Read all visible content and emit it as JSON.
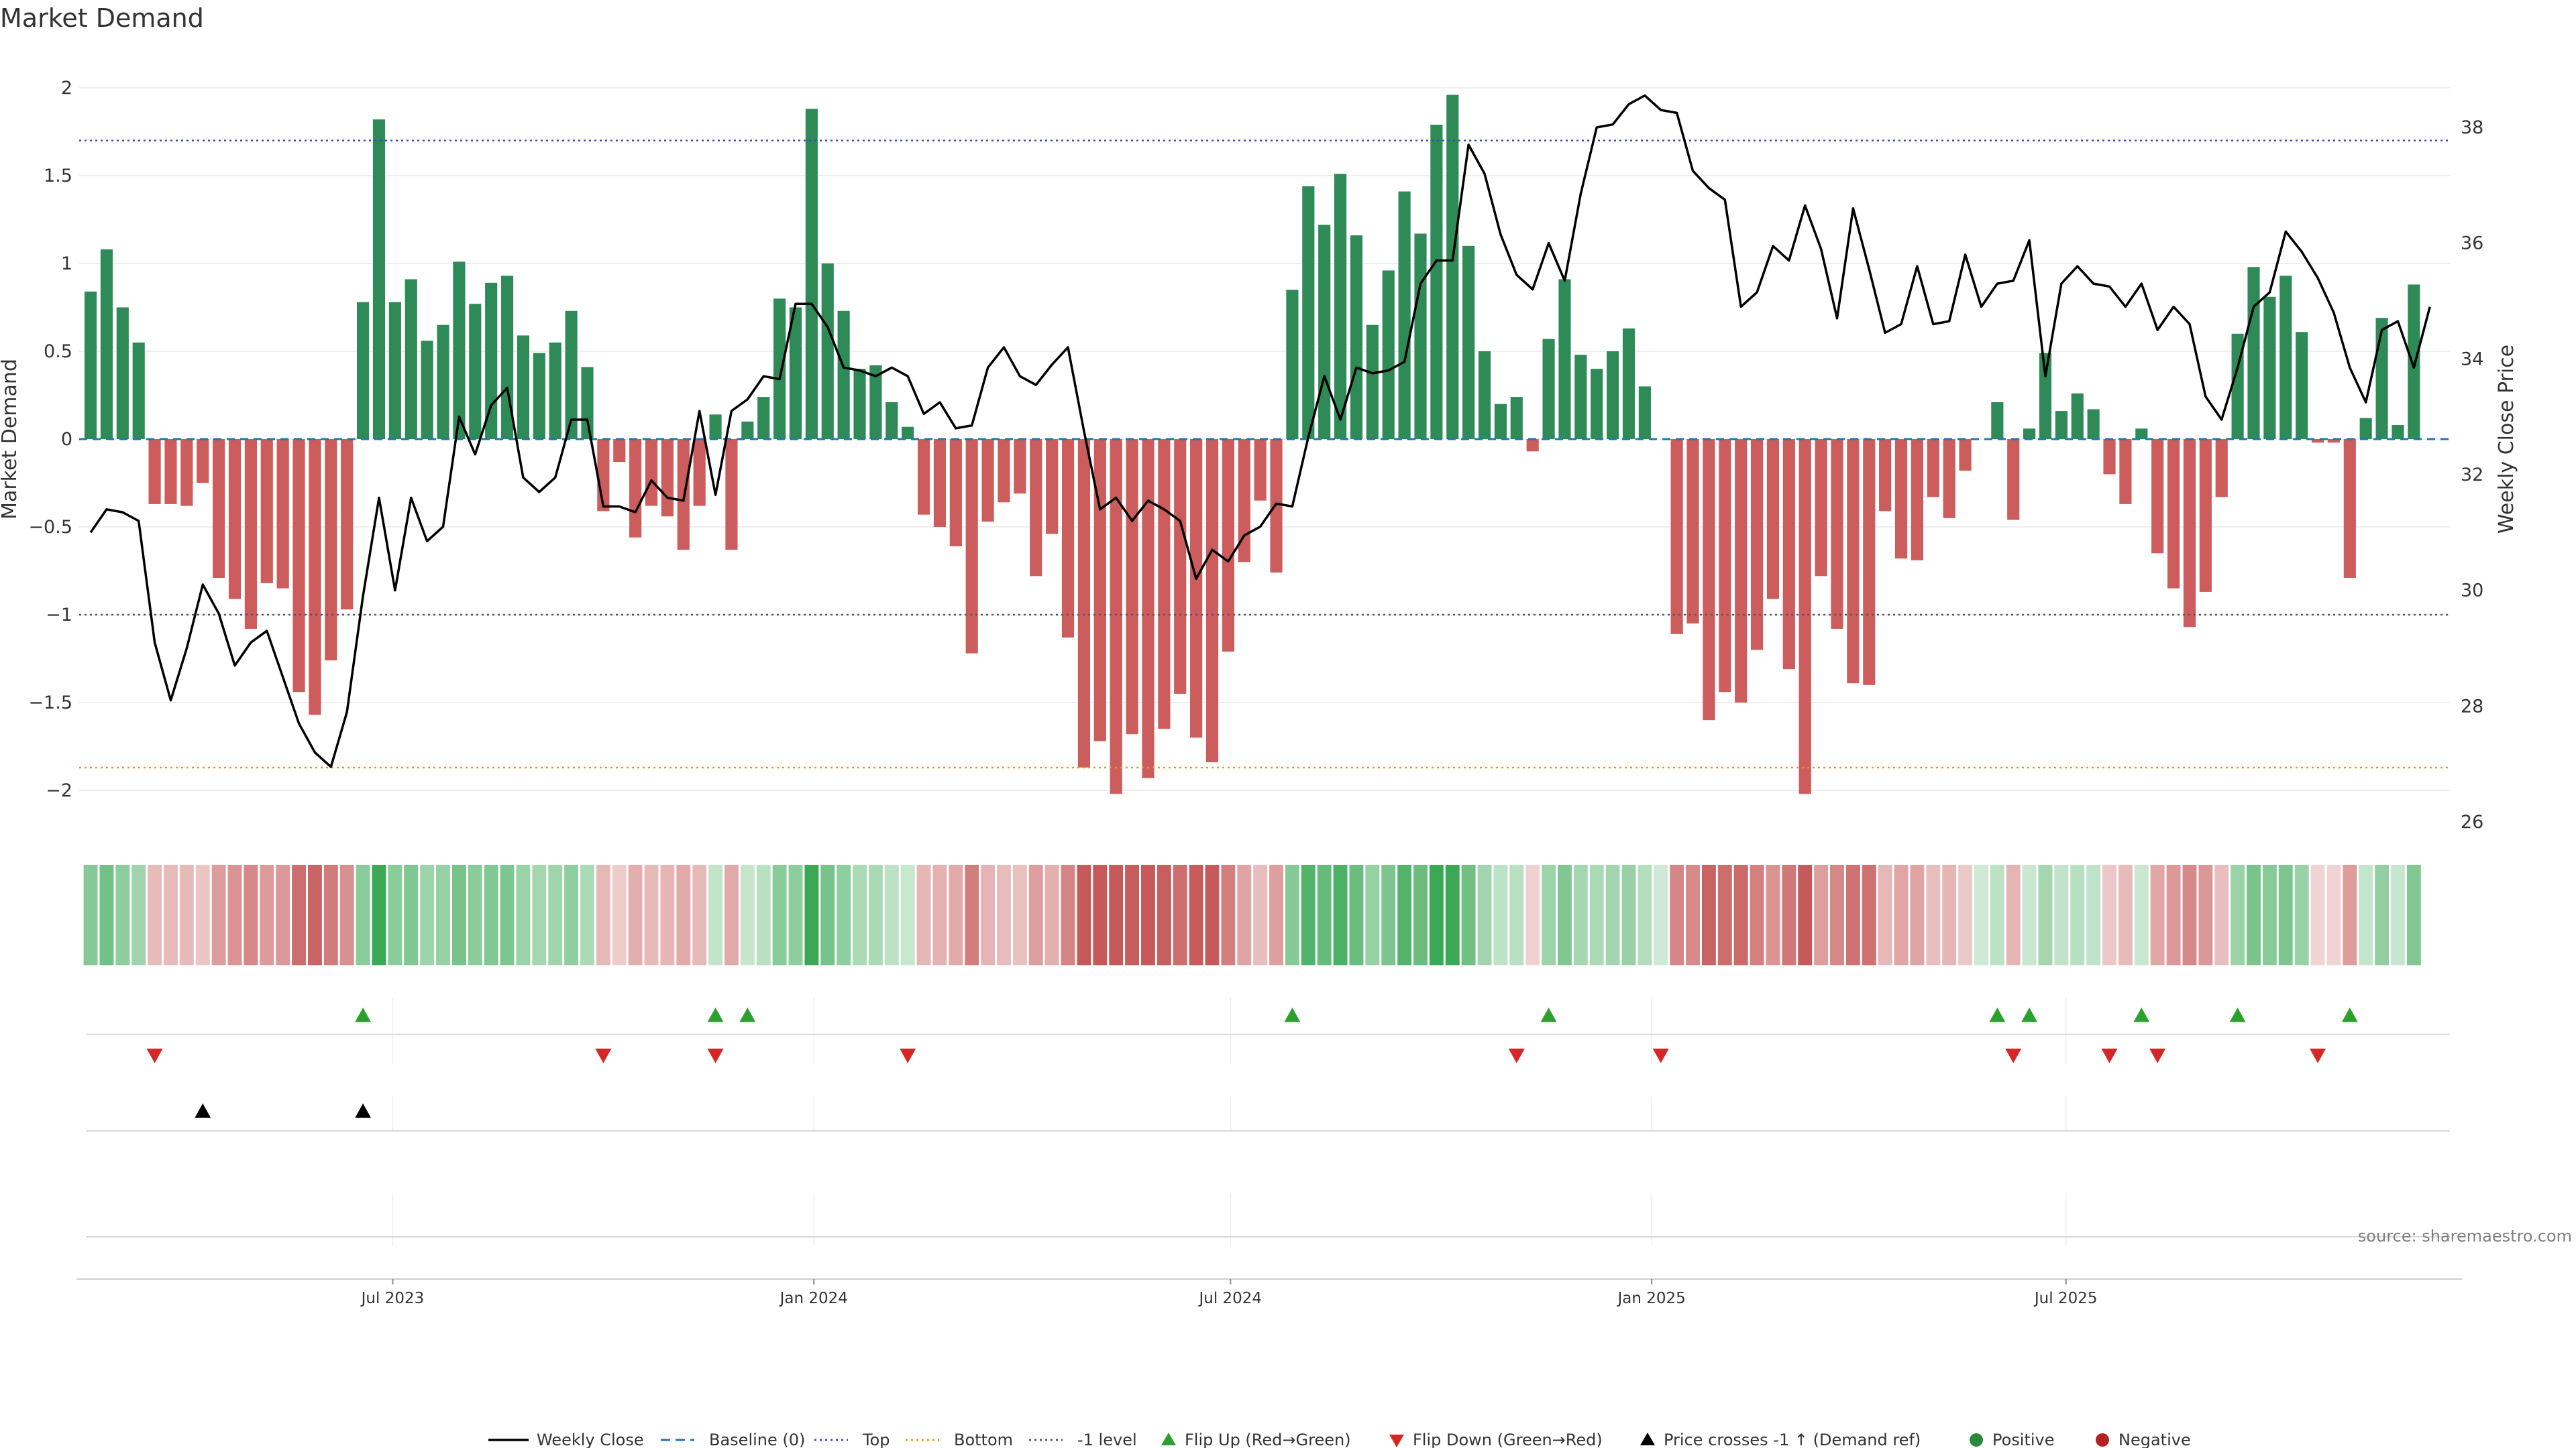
{
  "chart_data": {
    "type": "bar",
    "title": "Market Demand",
    "ylabel": "Market Demand",
    "y2label": "Weekly Close Price",
    "ylim": [
      -2.1,
      2.1
    ],
    "y2lim": [
      25.8,
      38.9
    ],
    "yticks": [
      "2",
      "1.5",
      "1",
      "0.5",
      "0",
      "−0.5",
      "−1",
      "−1.5",
      "−2"
    ],
    "y2ticks": [
      "38",
      "36",
      "34",
      "32",
      "30",
      "28",
      "26"
    ],
    "x_ticks": [
      "Jul 2023",
      "Jan 2024",
      "Jul 2024",
      "Jan 2025",
      "Jul 2025"
    ],
    "x_tick_dates": [
      "2023-07-01",
      "2024-01-01",
      "2024-07-01",
      "2025-01-01",
      "2025-07-01"
    ],
    "x_range": [
      "2023-02-14",
      "2025-12-21"
    ],
    "start_week": "2023-02-19",
    "bar_interval_days": 7,
    "levels": {
      "baseline": 0,
      "top": 1.7,
      "bottom": -1.87,
      "minus_one": -1
    },
    "demand": [
      0.84,
      1.08,
      0.75,
      0.55,
      -0.37,
      -0.37,
      -0.38,
      -0.25,
      -0.79,
      -0.91,
      -1.08,
      -0.82,
      -0.85,
      -1.44,
      -1.57,
      -1.26,
      -0.97,
      0.78,
      1.82,
      0.78,
      0.91,
      0.56,
      0.65,
      1.01,
      0.77,
      0.89,
      0.93,
      0.59,
      0.49,
      0.55,
      0.73,
      0.41,
      -0.41,
      -0.13,
      -0.56,
      -0.38,
      -0.44,
      -0.63,
      -0.38,
      0.14,
      -0.63,
      0.1,
      0.24,
      0.8,
      0.75,
      1.88,
      1.0,
      0.73,
      0.4,
      0.42,
      0.21,
      0.07,
      -0.43,
      -0.5,
      -0.61,
      -1.22,
      -0.47,
      -0.36,
      -0.31,
      -0.78,
      -0.54,
      -1.13,
      -1.87,
      -1.72,
      -2.02,
      -1.68,
      -1.93,
      -1.65,
      -1.45,
      -1.7,
      -1.84,
      -1.21,
      -0.7,
      -0.35,
      -0.76,
      0.85,
      1.44,
      1.22,
      1.51,
      1.16,
      0.65,
      0.96,
      1.41,
      1.17,
      1.79,
      1.96,
      1.1,
      0.5,
      0.2,
      0.24,
      -0.07,
      0.57,
      0.91,
      0.48,
      0.4,
      0.5,
      0.63,
      0.3,
      0.0,
      -1.11,
      -1.05,
      -1.6,
      -1.44,
      -1.5,
      -1.2,
      -0.91,
      -1.31,
      -2.02,
      -0.78,
      -1.08,
      -1.39,
      -1.4,
      -0.41,
      -0.68,
      -0.69,
      -0.33,
      -0.45,
      -0.18,
      0.0,
      0.21,
      -0.46,
      0.06,
      0.49,
      0.16,
      0.26,
      0.17,
      -0.2,
      -0.37,
      0.06,
      -0.65,
      -0.85,
      -1.07,
      -0.87,
      -0.33,
      0.6,
      0.98,
      0.81,
      0.93,
      0.61,
      -0.02,
      -0.02,
      -0.79,
      0.12,
      0.69,
      0.08,
      0.88
    ],
    "close_series": [
      {
        "date": "2023-02-19",
        "close": 31.0
      },
      {
        "date": "2023-02-26",
        "close": 31.4
      },
      {
        "date": "2023-03-05",
        "close": 31.35
      },
      {
        "date": "2023-03-12",
        "close": 31.2
      },
      {
        "date": "2023-03-19",
        "close": 29.1
      },
      {
        "date": "2023-03-26",
        "close": 28.1
      },
      {
        "date": "2023-04-02",
        "close": 29.0
      },
      {
        "date": "2023-04-09",
        "close": 30.1
      },
      {
        "date": "2023-04-16",
        "close": 29.6
      },
      {
        "date": "2023-04-23",
        "close": 28.7
      },
      {
        "date": "2023-04-30",
        "close": 29.1
      },
      {
        "date": "2023-05-07",
        "close": 29.3
      },
      {
        "date": "2023-05-14",
        "close": 28.5
      },
      {
        "date": "2023-05-21",
        "close": 27.7
      },
      {
        "date": "2023-05-28",
        "close": 27.2
      },
      {
        "date": "2023-06-04",
        "close": 26.95
      },
      {
        "date": "2023-06-11",
        "close": 27.9
      },
      {
        "date": "2023-06-18",
        "close": 29.9
      },
      {
        "date": "2023-06-25",
        "close": 31.6
      },
      {
        "date": "2023-07-02",
        "close": 30.0
      },
      {
        "date": "2023-07-09",
        "close": 31.6
      },
      {
        "date": "2023-07-16",
        "close": 30.85
      },
      {
        "date": "2023-07-23",
        "close": 31.1
      },
      {
        "date": "2023-07-30",
        "close": 33.0
      },
      {
        "date": "2023-08-06",
        "close": 32.35
      },
      {
        "date": "2023-08-13",
        "close": 33.2
      },
      {
        "date": "2023-08-20",
        "close": 33.5
      },
      {
        "date": "2023-08-27",
        "close": 31.95
      },
      {
        "date": "2023-09-03",
        "close": 31.7
      },
      {
        "date": "2023-09-10",
        "close": 31.95
      },
      {
        "date": "2023-09-17",
        "close": 32.95
      },
      {
        "date": "2023-09-24",
        "close": 32.95
      },
      {
        "date": "2023-10-01",
        "close": 31.45
      },
      {
        "date": "2023-10-08",
        "close": 31.45
      },
      {
        "date": "2023-10-15",
        "close": 31.35
      },
      {
        "date": "2023-10-22",
        "close": 31.9
      },
      {
        "date": "2023-10-29",
        "close": 31.6
      },
      {
        "date": "2023-11-05",
        "close": 31.55
      },
      {
        "date": "2023-11-12",
        "close": 33.1
      },
      {
        "date": "2023-11-19",
        "close": 31.65
      },
      {
        "date": "2023-11-26",
        "close": 33.1
      },
      {
        "date": "2023-12-03",
        "close": 33.3
      },
      {
        "date": "2023-12-10",
        "close": 33.7
      },
      {
        "date": "2023-12-17",
        "close": 33.65
      },
      {
        "date": "2023-12-24",
        "close": 34.95
      },
      {
        "date": "2023-12-31",
        "close": 34.95
      },
      {
        "date": "2024-01-07",
        "close": 34.55
      },
      {
        "date": "2024-01-14",
        "close": 33.85
      },
      {
        "date": "2024-01-21",
        "close": 33.8
      },
      {
        "date": "2024-01-28",
        "close": 33.7
      },
      {
        "date": "2024-02-04",
        "close": 33.85
      },
      {
        "date": "2024-02-11",
        "close": 33.7
      },
      {
        "date": "2024-02-18",
        "close": 33.05
      },
      {
        "date": "2024-02-25",
        "close": 33.25
      },
      {
        "date": "2024-03-03",
        "close": 32.8
      },
      {
        "date": "2024-03-10",
        "close": 32.85
      },
      {
        "date": "2024-03-17",
        "close": 33.85
      },
      {
        "date": "2024-03-24",
        "close": 34.2
      },
      {
        "date": "2024-03-31",
        "close": 33.7
      },
      {
        "date": "2024-04-07",
        "close": 33.55
      },
      {
        "date": "2024-04-14",
        "close": 33.9
      },
      {
        "date": "2024-04-21",
        "close": 34.2
      },
      {
        "date": "2024-04-28",
        "close": 32.75
      },
      {
        "date": "2024-05-05",
        "close": 31.4
      },
      {
        "date": "2024-05-12",
        "close": 31.6
      },
      {
        "date": "2024-05-19",
        "close": 31.2
      },
      {
        "date": "2024-05-26",
        "close": 31.55
      },
      {
        "date": "2024-06-02",
        "close": 31.4
      },
      {
        "date": "2024-06-09",
        "close": 31.2
      },
      {
        "date": "2024-06-16",
        "close": 30.2
      },
      {
        "date": "2024-06-23",
        "close": 30.7
      },
      {
        "date": "2024-06-30",
        "close": 30.5
      },
      {
        "date": "2024-07-07",
        "close": 30.95
      },
      {
        "date": "2024-07-14",
        "close": 31.1
      },
      {
        "date": "2024-07-21",
        "close": 31.5
      },
      {
        "date": "2024-07-28",
        "close": 31.45
      },
      {
        "date": "2024-08-04",
        "close": 32.65
      },
      {
        "date": "2024-08-11",
        "close": 33.7
      },
      {
        "date": "2024-08-18",
        "close": 32.95
      },
      {
        "date": "2024-08-25",
        "close": 33.85
      },
      {
        "date": "2024-09-01",
        "close": 33.75
      },
      {
        "date": "2024-09-08",
        "close": 33.8
      },
      {
        "date": "2024-09-15",
        "close": 33.95
      },
      {
        "date": "2024-09-22",
        "close": 35.3
      },
      {
        "date": "2024-09-29",
        "close": 35.7
      },
      {
        "date": "2024-10-06",
        "close": 35.7
      },
      {
        "date": "2024-10-13",
        "close": 37.7
      },
      {
        "date": "2024-10-20",
        "close": 37.2
      },
      {
        "date": "2024-10-27",
        "close": 36.15
      },
      {
        "date": "2024-11-03",
        "close": 35.45
      },
      {
        "date": "2024-11-10",
        "close": 35.2
      },
      {
        "date": "2024-11-17",
        "close": 36.0
      },
      {
        "date": "2024-11-24",
        "close": 35.35
      },
      {
        "date": "2024-12-01",
        "close": 36.85
      },
      {
        "date": "2024-12-08",
        "close": 38.0
      },
      {
        "date": "2024-12-15",
        "close": 38.05
      },
      {
        "date": "2024-12-22",
        "close": 38.4
      },
      {
        "date": "2024-12-29",
        "close": 38.55
      },
      {
        "date": "2025-01-05",
        "close": 38.3
      },
      {
        "date": "2025-01-12",
        "close": 38.25
      },
      {
        "date": "2025-01-19",
        "close": 37.25
      },
      {
        "date": "2025-01-26",
        "close": 36.95
      },
      {
        "date": "2025-02-02",
        "close": 36.75
      },
      {
        "date": "2025-02-09",
        "close": 34.9
      },
      {
        "date": "2025-02-16",
        "close": 35.15
      },
      {
        "date": "2025-02-23",
        "close": 35.95
      },
      {
        "date": "2025-03-02",
        "close": 35.7
      },
      {
        "date": "2025-03-09",
        "close": 36.65
      },
      {
        "date": "2025-03-16",
        "close": 35.9
      },
      {
        "date": "2025-03-23",
        "close": 34.7
      },
      {
        "date": "2025-03-30",
        "close": 36.6
      },
      {
        "date": "2025-04-06",
        "close": 35.55
      },
      {
        "date": "2025-04-13",
        "close": 34.45
      },
      {
        "date": "2025-04-20",
        "close": 34.6
      },
      {
        "date": "2025-04-27",
        "close": 35.6
      },
      {
        "date": "2025-05-04",
        "close": 34.6
      },
      {
        "date": "2025-05-11",
        "close": 34.65
      },
      {
        "date": "2025-05-18",
        "close": 35.8
      },
      {
        "date": "2025-05-25",
        "close": 34.9
      },
      {
        "date": "2025-06-01",
        "close": 35.3
      },
      {
        "date": "2025-06-08",
        "close": 35.35
      },
      {
        "date": "2025-06-15",
        "close": 36.05
      },
      {
        "date": "2025-06-22",
        "close": 33.7
      },
      {
        "date": "2025-06-29",
        "close": 35.3
      },
      {
        "date": "2025-07-06",
        "close": 35.6
      },
      {
        "date": "2025-07-13",
        "close": 35.3
      },
      {
        "date": "2025-07-20",
        "close": 35.25
      },
      {
        "date": "2025-07-27",
        "close": 34.9
      },
      {
        "date": "2025-08-03",
        "close": 35.3
      },
      {
        "date": "2025-08-10",
        "close": 34.5
      },
      {
        "date": "2025-08-17",
        "close": 34.9
      },
      {
        "date": "2025-08-24",
        "close": 34.6
      },
      {
        "date": "2025-08-31",
        "close": 33.35
      },
      {
        "date": "2025-09-07",
        "close": 32.95
      },
      {
        "date": "2025-09-14",
        "close": 33.85
      },
      {
        "date": "2025-09-21",
        "close": 34.9
      },
      {
        "date": "2025-09-28",
        "close": 35.15
      },
      {
        "date": "2025-10-05",
        "close": 36.2
      },
      {
        "date": "2025-10-12",
        "close": 35.85
      },
      {
        "date": "2025-10-19",
        "close": 35.4
      },
      {
        "date": "2025-10-26",
        "close": 34.8
      },
      {
        "date": "2025-11-02",
        "close": 33.85
      },
      {
        "date": "2025-11-09",
        "close": 33.25
      },
      {
        "date": "2025-11-16",
        "close": 34.5
      },
      {
        "date": "2025-11-23",
        "close": 34.65
      },
      {
        "date": "2025-11-30",
        "close": 33.85
      },
      {
        "date": "2025-12-07",
        "close": 34.9
      }
    ],
    "flip_up_weeks": [
      17,
      39,
      41,
      75,
      91,
      119,
      121,
      128,
      134,
      141
    ],
    "flip_down_weeks": [
      4,
      32,
      39,
      51,
      89,
      98,
      120,
      126,
      129,
      139
    ],
    "price_cross_weeks": [
      7,
      17
    ],
    "colors": {
      "positive": "#2e8b57",
      "negative": "#cd5c5c",
      "close_line": "#000000",
      "baseline": "#1f77b4",
      "top": "#3b4cc0",
      "bottom": "#e69d00",
      "minus_one": "#555566",
      "flip_up": "#2ca02c",
      "flip_down": "#d62728",
      "price_cross": "#000000",
      "positive_dot": "#2a8a3a",
      "negative_dot": "#b22222"
    },
    "legend": [
      {
        "label": "Weekly Close",
        "kind": "line",
        "color": "#000000"
      },
      {
        "label": "Baseline (0)",
        "kind": "dash",
        "color": "#1f77b4"
      },
      {
        "label": "Top",
        "kind": "dots",
        "color": "#3b4cc0"
      },
      {
        "label": "Bottom",
        "kind": "dots",
        "color": "#e69d00"
      },
      {
        "label": "-1 level",
        "kind": "dots",
        "color": "#555566"
      },
      {
        "label": "Flip Up (Red→Green)",
        "kind": "tri-up",
        "color": "#2ca02c"
      },
      {
        "label": "Flip Down (Green→Red)",
        "kind": "tri-down",
        "color": "#d62728"
      },
      {
        "label": "Price crosses -1 ↑ (Demand ref)",
        "kind": "tri-up",
        "color": "#000000"
      },
      {
        "label": "Positive",
        "kind": "dot",
        "color": "#2a8a3a"
      },
      {
        "label": "Negative",
        "kind": "dot",
        "color": "#b22222"
      }
    ],
    "source": "source: sharemaestro.com"
  }
}
